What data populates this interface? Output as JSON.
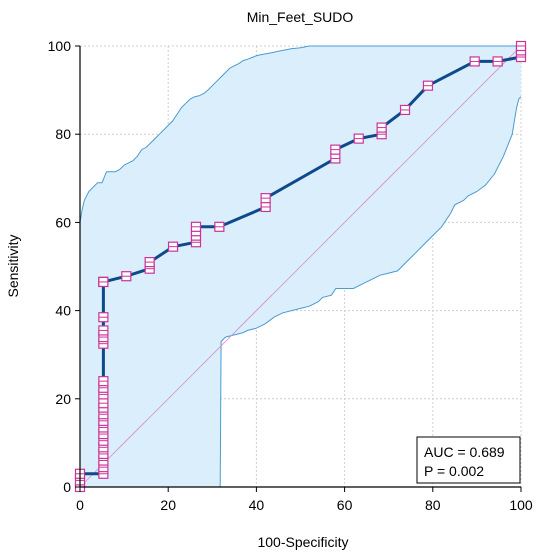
{
  "chart_data": {
    "type": "line",
    "title": "Min_Feet_SUDO",
    "xlabel": "100-Specificity",
    "ylabel": "Sensitivity",
    "xlim": [
      0,
      100
    ],
    "ylim": [
      0,
      100
    ],
    "xticks": [
      "0",
      "20",
      "40",
      "60",
      "80",
      "100"
    ],
    "yticks": [
      "0",
      "20",
      "40",
      "60",
      "80",
      "100"
    ],
    "grid": true,
    "series": [
      {
        "role": "roc-curve",
        "x": [
          0,
          0,
          0,
          5.3,
          5.3,
          5.3,
          5.3,
          5.3,
          5.3,
          5.3,
          5.3,
          5.3,
          5.3,
          5.3,
          5.3,
          5.3,
          5.3,
          5.3,
          5.3,
          5.3,
          5.3,
          5.3,
          5.3,
          5.3,
          5.3,
          10.5,
          15.8,
          15.8,
          21.1,
          26.3,
          26.3,
          26.3,
          26.3,
          31.6,
          42.1,
          42.1,
          57.9,
          57.9,
          63.2,
          68.4,
          68.4,
          73.7,
          78.9,
          89.5,
          94.7,
          100,
          100,
          100
        ],
        "y": [
          0,
          1.5,
          3,
          3,
          4.5,
          6,
          7.5,
          9,
          10.5,
          12,
          13.5,
          15,
          16.5,
          18,
          19,
          21,
          22.5,
          24,
          32.5,
          34,
          35.5,
          38.5,
          46.5,
          46.5,
          46.5,
          47.8,
          49.5,
          51,
          54.5,
          55.5,
          57,
          58,
          59,
          59,
          63.5,
          65.5,
          74.5,
          76.5,
          79,
          80,
          81.5,
          85.5,
          91,
          96.5,
          96.5,
          97.5,
          99,
          100
        ]
      },
      {
        "role": "ci-upper",
        "x": [
          0,
          0.5,
          1,
          2,
          3,
          4,
          5,
          6,
          7,
          8,
          9,
          10,
          11,
          12,
          13,
          14,
          15,
          16,
          17,
          18,
          19,
          20,
          21,
          22,
          23,
          24,
          25,
          26,
          27,
          28,
          29,
          30,
          31,
          32,
          33,
          34,
          35,
          36,
          37,
          38,
          39,
          40,
          41,
          42,
          43,
          44,
          45,
          46,
          47,
          48,
          49,
          50,
          51,
          52,
          53,
          54,
          55,
          56,
          57,
          58,
          59,
          60,
          61,
          62,
          63,
          64,
          65,
          66,
          67,
          68,
          69,
          70,
          71,
          72,
          73,
          74,
          75,
          76,
          77,
          78,
          79,
          80,
          81,
          82,
          83,
          84,
          85,
          86,
          87,
          88,
          89,
          90,
          91,
          92,
          93,
          94,
          95,
          96,
          97,
          98,
          99,
          100
        ],
        "y": [
          60,
          63,
          65,
          67,
          68,
          69,
          69,
          71.5,
          71.5,
          71.5,
          72,
          73,
          73.5,
          74,
          75,
          76.5,
          77,
          78,
          79,
          80,
          81,
          82,
          83,
          84.5,
          86,
          87,
          88,
          88.5,
          88.7,
          89.2,
          90,
          91,
          92,
          93,
          94,
          95,
          95.5,
          96,
          96.7,
          97,
          97.4,
          97.8,
          98,
          98.2,
          98.4,
          98.6,
          98.8,
          99,
          99.2,
          99.4,
          99.5,
          99.6,
          99.8,
          100,
          100,
          100,
          100,
          100,
          100,
          100,
          100,
          100,
          100,
          100,
          100,
          100,
          100,
          100,
          100,
          100,
          100,
          100,
          100,
          100,
          100,
          100,
          100,
          100,
          100,
          100,
          100,
          100,
          100,
          100,
          100,
          100,
          100,
          100,
          100,
          100,
          100,
          100,
          100,
          100,
          100,
          100,
          100,
          100,
          100,
          100,
          100,
          100
        ]
      },
      {
        "role": "ci-lower",
        "x": [
          0,
          5,
          10,
          15,
          20,
          25,
          30,
          31.8,
          32,
          33,
          35,
          37,
          38,
          40,
          42,
          44,
          46,
          48,
          50,
          52,
          54,
          55,
          57,
          58,
          60,
          62,
          64,
          66,
          68,
          70,
          72,
          74,
          76,
          78,
          80,
          82,
          84,
          85,
          86,
          87,
          88,
          90,
          92,
          94,
          96,
          98,
          99,
          99.5,
          100
        ],
        "y": [
          0,
          0,
          0,
          0,
          0,
          0,
          0,
          0,
          33,
          34,
          34.5,
          35,
          35.5,
          36,
          37,
          38.5,
          39.5,
          40,
          40.5,
          41,
          42,
          43,
          43.5,
          45,
          45,
          45,
          46,
          47,
          48,
          48.5,
          49,
          51,
          53,
          55,
          57,
          59,
          62,
          64,
          64.5,
          65,
          66,
          67,
          68.5,
          71,
          75,
          80,
          86,
          88,
          88.5
        ]
      },
      {
        "role": "reference-diagonal",
        "x": [
          0,
          100
        ],
        "y": [
          0,
          100
        ]
      }
    ],
    "annotations": [
      "AUC = 0.689",
      "P = 0.002"
    ],
    "colors": {
      "curve": "#0d4a8c",
      "marker_edge": "#cc3399",
      "marker_fill": "#ffffff",
      "ci_fill": "#dbeefb",
      "ci_edge": "#4a9bd0",
      "diagonal": "#d98ecb",
      "grid": "#cfcfcf"
    }
  }
}
